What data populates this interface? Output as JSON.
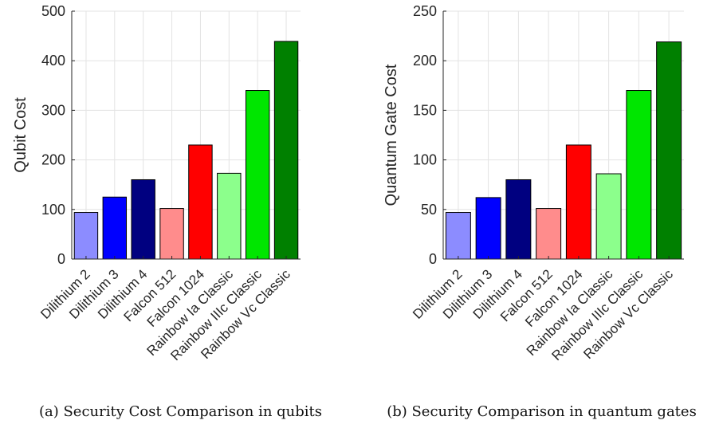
{
  "chart_data": [
    {
      "type": "bar",
      "panel": "a",
      "caption": "(a) Security Cost Comparison in qubits",
      "ylabel": "Qubit Cost",
      "xlabel": "",
      "ylim": [
        0,
        500
      ],
      "yticks": [
        0,
        100,
        200,
        300,
        400,
        500
      ],
      "grid": true,
      "categories": [
        "Dilithium 2",
        "Dilithium 3",
        "Dilithium 4",
        "Falcon 512",
        "Falcon 1024",
        "Rainbow Ia Classic",
        "Rainbow IIIc Classic",
        "Rainbow Vc Classic"
      ],
      "values": [
        94,
        125,
        160,
        102,
        230,
        173,
        340,
        439
      ],
      "colors": [
        "#8c8cff",
        "#0000ff",
        "#000080",
        "#ff8c8c",
        "#ff0000",
        "#8cff8c",
        "#00e600",
        "#008000"
      ]
    },
    {
      "type": "bar",
      "panel": "b",
      "caption": "(b) Security Comparison in quantum gates",
      "ylabel": "Quantum Gate Cost",
      "xlabel": "",
      "ylim": [
        0,
        250
      ],
      "yticks": [
        0,
        50,
        100,
        150,
        200,
        250
      ],
      "grid": true,
      "categories": [
        "Dilithium 2",
        "Dilithium 3",
        "Dilithium 4",
        "Falcon 512",
        "Falcon 1024",
        "Rainbow Ia Classic",
        "Rainbow IIIc Classic",
        "Rainbow Vc Classic"
      ],
      "values": [
        47,
        62,
        80,
        51,
        115,
        86,
        170,
        219
      ],
      "colors": [
        "#8c8cff",
        "#0000ff",
        "#000080",
        "#ff8c8c",
        "#ff0000",
        "#8cff8c",
        "#00e600",
        "#008000"
      ]
    }
  ]
}
